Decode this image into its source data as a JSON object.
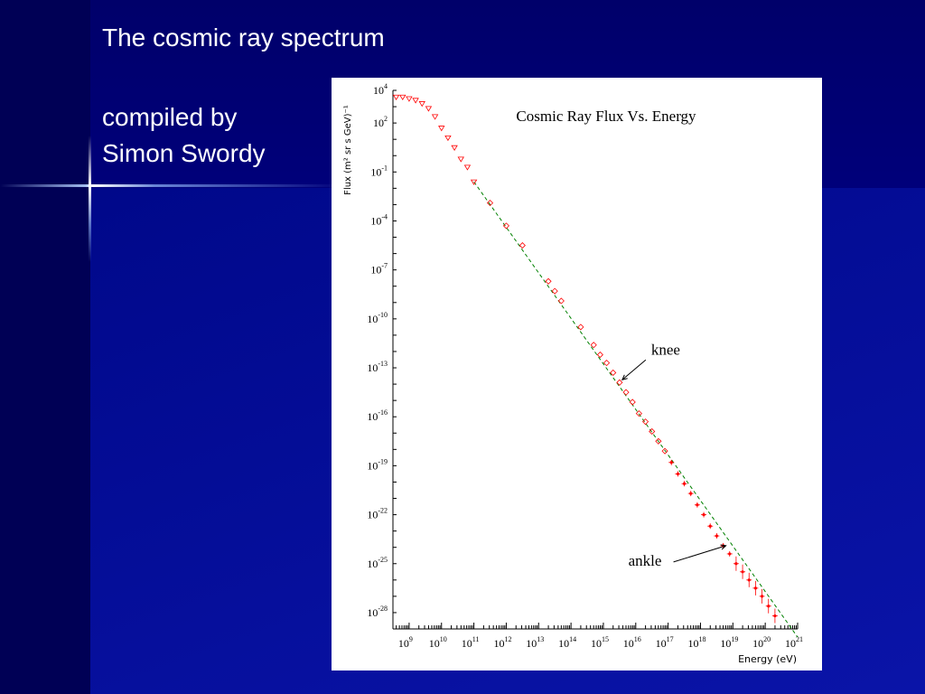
{
  "slide": {
    "title": "The cosmic ray spectrum",
    "subtitle_line1": "compiled by",
    "subtitle_line2": "Simon Swordy"
  },
  "colors": {
    "slide_bg": "#00006e",
    "panel_bg": "#0a14a8",
    "data_points": "#ff0000",
    "fit_line": "#008000"
  },
  "chart_data": {
    "type": "scatter",
    "title": "Cosmic Ray Flux Vs. Energy",
    "xlabel": "Energy (eV)",
    "ylabel": "Flux (m² sr s GeV)⁻¹",
    "x_scale": "log",
    "y_scale": "log",
    "xlim_log10": [
      8.5,
      21
    ],
    "ylim_log10": [
      -29,
      4
    ],
    "x_tick_labels": [
      {
        "exp": "9"
      },
      {
        "exp": "10"
      },
      {
        "exp": "11"
      },
      {
        "exp": "12"
      },
      {
        "exp": "13"
      },
      {
        "exp": "14"
      },
      {
        "exp": "15"
      },
      {
        "exp": "16"
      },
      {
        "exp": "17"
      },
      {
        "exp": "18"
      },
      {
        "exp": "19"
      },
      {
        "exp": "20"
      },
      {
        "exp": "21"
      }
    ],
    "y_tick_labels": [
      {
        "exp": "4"
      },
      {
        "exp": "2"
      },
      {
        "exp": "-1"
      },
      {
        "exp": "-4"
      },
      {
        "exp": "-7"
      },
      {
        "exp": "-10"
      },
      {
        "exp": "-13"
      },
      {
        "exp": "-16"
      },
      {
        "exp": "-19"
      },
      {
        "exp": "-22"
      },
      {
        "exp": "-25"
      },
      {
        "exp": "-28"
      }
    ],
    "series": [
      {
        "log10_energy": [
          8.6,
          8.8,
          9.0,
          9.2,
          9.4,
          9.6,
          9.8,
          10.0,
          10.2,
          10.4,
          10.6,
          10.8,
          11.0,
          11.5,
          12.0,
          12.5,
          13.3,
          13.5,
          13.7,
          14.3,
          14.7,
          14.9,
          15.1,
          15.3,
          15.5,
          15.7,
          15.9,
          16.1,
          16.3,
          16.5,
          16.7,
          16.9,
          17.1,
          17.3,
          17.5,
          17.7,
          17.9,
          18.1,
          18.3,
          18.5,
          18.7,
          18.9,
          19.1,
          19.3,
          19.5,
          19.7,
          19.9,
          20.1,
          20.3
        ],
        "log10_flux": [
          3.6,
          3.6,
          3.5,
          3.4,
          3.2,
          2.9,
          2.4,
          1.7,
          1.1,
          0.5,
          -0.2,
          -0.7,
          -1.6,
          -2.9,
          -4.3,
          -5.5,
          -7.7,
          -8.3,
          -8.9,
          -10.5,
          -11.6,
          -12.2,
          -12.7,
          -13.3,
          -13.9,
          -14.5,
          -15.1,
          -15.8,
          -16.3,
          -16.9,
          -17.5,
          -18.1,
          -18.8,
          -19.5,
          -20.1,
          -20.7,
          -21.4,
          -22.0,
          -22.7,
          -23.3,
          -23.9,
          -24.4,
          -25.0,
          -25.5,
          -26.0,
          -26.5,
          -27.0,
          -27.6,
          -28.2
        ]
      }
    ],
    "fit_line": {
      "from": [
        11.0,
        -1.6
      ],
      "to": [
        21.0,
        -29.5
      ]
    },
    "annotations": [
      {
        "text": "knee",
        "target": [
          15.5,
          -13.9
        ]
      },
      {
        "text": "ankle",
        "target": [
          18.7,
          -23.9
        ]
      }
    ]
  }
}
